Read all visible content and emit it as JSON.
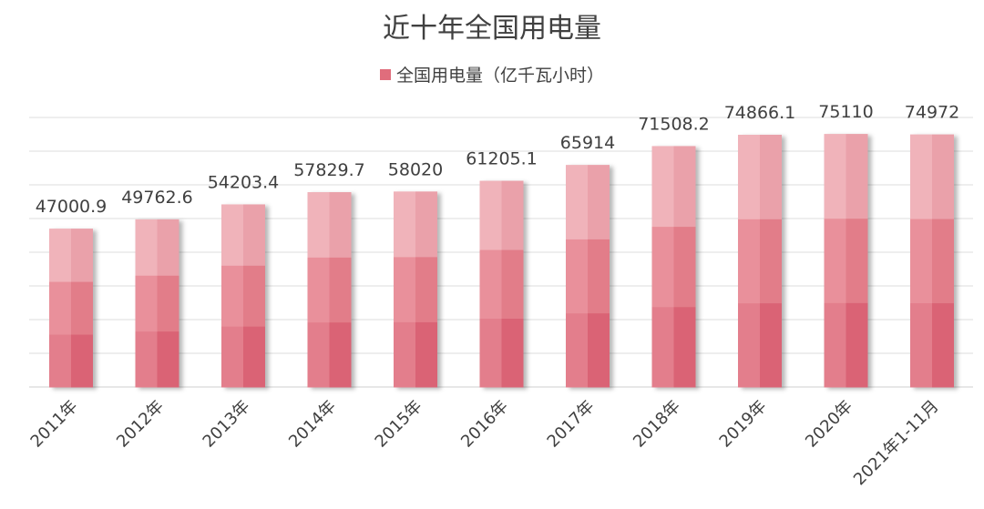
{
  "chart_data": {
    "type": "bar",
    "title": "近十年全国用电量",
    "legend": [
      "全国用电量（亿千瓦小时）"
    ],
    "categories": [
      "2011年",
      "2012年",
      "2013年",
      "2014年",
      "2015年",
      "2016年",
      "2017年",
      "2018年",
      "2019年",
      "2020年",
      "2021年1-11月"
    ],
    "series": [
      {
        "name": "全国用电量（亿千瓦小时）",
        "values": [
          47000.9,
          49762.6,
          54203.4,
          57829.7,
          58020,
          61205.1,
          65914,
          71508.2,
          74866.1,
          75110,
          74972
        ],
        "labels": [
          "47000.9",
          "49762.6",
          "54203.4",
          "57829.7",
          "58020",
          "61205.1",
          "65914",
          "71508.2",
          "74866.1",
          "75110",
          "74972"
        ],
        "color": "#e06d7c"
      }
    ],
    "grid": true,
    "legend_position": "top"
  }
}
